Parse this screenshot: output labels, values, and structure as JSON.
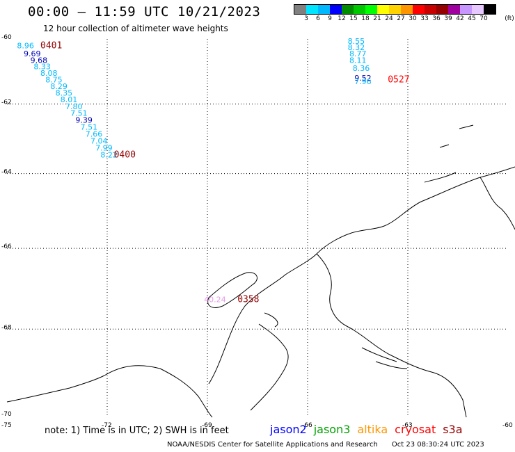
{
  "header": {
    "title": "00:00 – 11:59 UTC 10/21/2023",
    "subtitle": "12 hour collection of altimeter wave heights"
  },
  "legend": {
    "colors": [
      "#808080",
      "#00e5ff",
      "#00b8ff",
      "#0000ff",
      "#008c00",
      "#00c800",
      "#00ff00",
      "#ffff00",
      "#ffd200",
      "#ff9600",
      "#ff0000",
      "#c80000",
      "#960000",
      "#a000a0",
      "#c896ff",
      "#e6c8ff",
      "#000000"
    ],
    "labels": [
      "3",
      "6",
      "9",
      "12",
      "15",
      "18",
      "21",
      "24",
      "27",
      "30",
      "33",
      "36",
      "39",
      "42",
      "45",
      "70"
    ],
    "unit": "(ft)"
  },
  "axes": {
    "lat_labels": [
      "-60",
      "-62",
      "-64",
      "-66",
      "-68",
      "-70"
    ],
    "lon_labels": [
      "-75",
      "-72",
      "-69",
      "-66",
      "-63",
      "-60"
    ],
    "lon_range": [
      -75,
      -60
    ],
    "lat_range": [
      -60,
      -70
    ]
  },
  "wave_heights": [
    {
      "value": "8.96",
      "lon": -74.7,
      "lat": -60.3,
      "color": "#00b8ff"
    },
    {
      "value": "9.69",
      "lon": -74.5,
      "lat": -60.55,
      "color": "#0000b4"
    },
    {
      "value": "9.68",
      "lon": -74.3,
      "lat": -60.75,
      "color": "#0000b4"
    },
    {
      "value": "8.33",
      "lon": -74.2,
      "lat": -60.95,
      "color": "#00b8ff"
    },
    {
      "value": "8.08",
      "lon": -74.0,
      "lat": -61.15,
      "color": "#00b8ff"
    },
    {
      "value": "8.75",
      "lon": -73.85,
      "lat": -61.35,
      "color": "#00b8ff"
    },
    {
      "value": "8.29",
      "lon": -73.7,
      "lat": -61.55,
      "color": "#00b8ff"
    },
    {
      "value": "8.35",
      "lon": -73.55,
      "lat": -61.75,
      "color": "#00b8ff"
    },
    {
      "value": "8.01",
      "lon": -73.4,
      "lat": -61.95,
      "color": "#00b8ff"
    },
    {
      "value": "7.80",
      "lon": -73.25,
      "lat": -62.15,
      "color": "#00b8ff"
    },
    {
      "value": "7.51",
      "lon": -73.1,
      "lat": -62.35,
      "color": "#00b8ff"
    },
    {
      "value": "9.39",
      "lon": -72.95,
      "lat": -62.55,
      "color": "#0000b4"
    },
    {
      "value": "7.51",
      "lon": -72.8,
      "lat": -62.75,
      "color": "#00b8ff"
    },
    {
      "value": "7.66",
      "lon": -72.65,
      "lat": -62.95,
      "color": "#00b8ff"
    },
    {
      "value": "7.04",
      "lon": -72.5,
      "lat": -63.15,
      "color": "#00b8ff"
    },
    {
      "value": "7.99",
      "lon": -72.35,
      "lat": -63.35,
      "color": "#00b8ff"
    },
    {
      "value": "8.22",
      "lon": -72.2,
      "lat": -63.55,
      "color": "#00b8ff"
    },
    {
      "value": "8.55",
      "lon": -64.8,
      "lat": -60.15,
      "color": "#00b8ff"
    },
    {
      "value": "8.32",
      "lon": -64.8,
      "lat": -60.35,
      "color": "#00b8ff"
    },
    {
      "value": "8.77",
      "lon": -64.75,
      "lat": -60.55,
      "color": "#00b8ff"
    },
    {
      "value": "8.11",
      "lon": -64.75,
      "lat": -60.75,
      "color": "#00b8ff"
    },
    {
      "value": "8.36",
      "lon": -64.65,
      "lat": -61.0,
      "color": "#00b8ff"
    },
    {
      "value": "9.52",
      "lon": -64.6,
      "lat": -61.3,
      "color": "#0000b4"
    },
    {
      "value": "7.96",
      "lon": -64.6,
      "lat": -61.4,
      "color": "#00b8ff"
    },
    {
      "value": "40.24",
      "lon": -69.1,
      "lat": -67.35,
      "color": "#e69ae6"
    }
  ],
  "pass_times": [
    {
      "time": "0401",
      "lon": -74.0,
      "lat": -60.3,
      "color": "#960000"
    },
    {
      "time": "0400",
      "lon": -71.8,
      "lat": -63.55,
      "color": "#960000"
    },
    {
      "time": "0527",
      "lon": -63.6,
      "lat": -61.35,
      "color": "#ff0000"
    },
    {
      "time": "0358",
      "lon": -68.1,
      "lat": -67.35,
      "color": "#960000"
    }
  ],
  "footer": {
    "note": "note:  1) Time is in UTC;  2) SWH is in feet",
    "satellites": [
      {
        "name": "jason2",
        "color": "#0000ff"
      },
      {
        "name": "jason3",
        "color": "#00a000"
      },
      {
        "name": "altika",
        "color": "#ff9600"
      },
      {
        "name": "cryosat",
        "color": "#ff0000"
      },
      {
        "name": "s3a",
        "color": "#960000"
      }
    ],
    "credit": "NOAA/NESDIS Center for Satellite Applications and Research",
    "timestamp": "Oct 23 08:30:24 UTC 2023"
  }
}
